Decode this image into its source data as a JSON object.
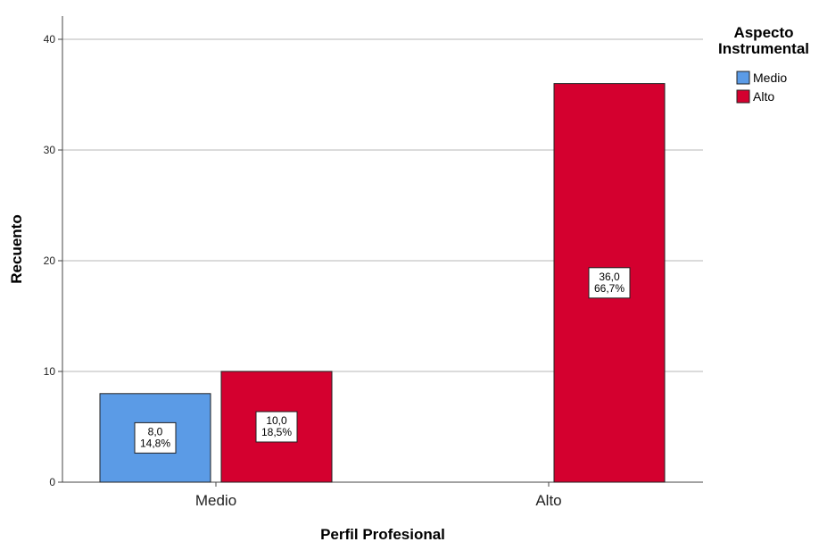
{
  "chart_data": {
    "type": "bar",
    "xlabel": "Perfil Profesional",
    "ylabel": "Recuento",
    "ylim": [
      0,
      40
    ],
    "yticks": [
      0,
      10,
      20,
      30,
      40
    ],
    "grid": true,
    "legend_position": "top-right",
    "legend_title": [
      "Aspecto",
      "Instrumental"
    ],
    "categories": [
      "Medio",
      "Alto"
    ],
    "series": [
      {
        "name": "Medio",
        "color": "#5b9be6",
        "values": [
          8,
          0
        ],
        "labels": [
          [
            "8,0",
            "14,8%"
          ],
          null
        ]
      },
      {
        "name": "Alto",
        "color": "#d4002f",
        "values": [
          10,
          36
        ],
        "labels": [
          [
            "10,0",
            "18,5%"
          ],
          [
            "36,0",
            "66,7%"
          ]
        ]
      }
    ]
  }
}
